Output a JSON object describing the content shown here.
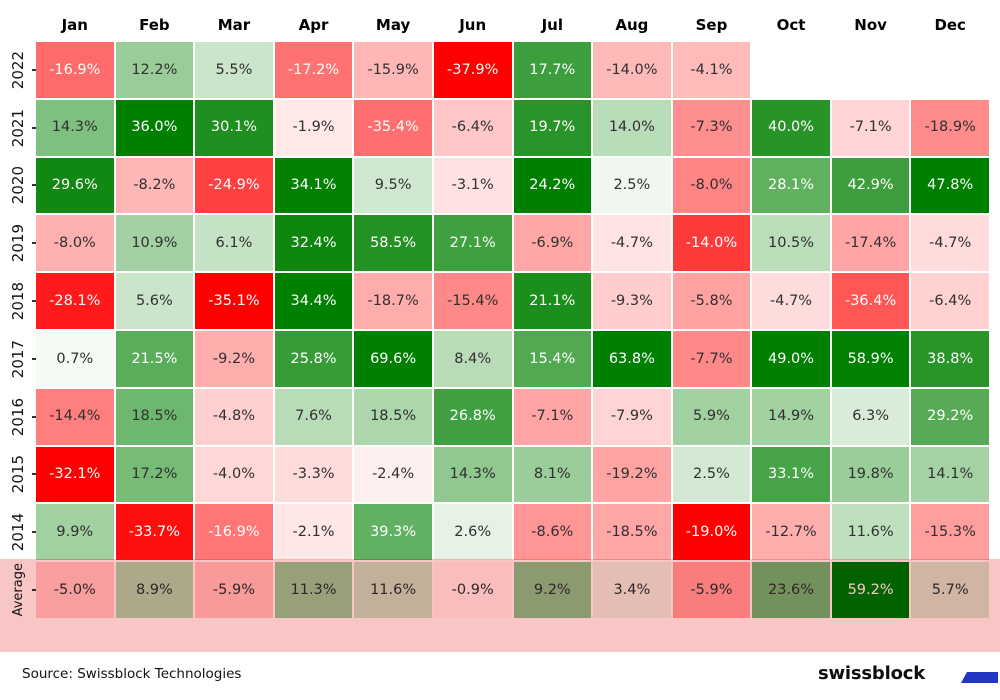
{
  "chart_data": {
    "type": "heatmap",
    "title": "",
    "xlabel": "",
    "ylabel": "",
    "columns": [
      "Jan",
      "Feb",
      "Mar",
      "Apr",
      "May",
      "Jun",
      "Jul",
      "Aug",
      "Sep",
      "Oct",
      "Nov",
      "Dec"
    ],
    "rows": [
      "2022",
      "2021",
      "2020",
      "2019",
      "2018",
      "2017",
      "2016",
      "2015",
      "2014",
      "Average"
    ],
    "values": [
      [
        -16.9,
        12.2,
        5.5,
        -17.2,
        -15.9,
        -37.9,
        17.7,
        -14.0,
        -4.1,
        null,
        null,
        null
      ],
      [
        14.3,
        36.0,
        30.1,
        -1.9,
        -35.4,
        -6.4,
        19.7,
        14.0,
        -7.3,
        40.0,
        -7.1,
        -18.9
      ],
      [
        29.6,
        -8.2,
        -24.9,
        34.1,
        9.5,
        -3.1,
        24.2,
        2.5,
        -8.0,
        28.1,
        42.9,
        47.8
      ],
      [
        -8.0,
        10.9,
        6.1,
        32.4,
        58.5,
        27.1,
        -6.9,
        -4.7,
        -14.0,
        10.5,
        -17.4,
        -4.7
      ],
      [
        -28.1,
        5.6,
        -35.1,
        34.4,
        -18.7,
        -15.4,
        21.1,
        -9.3,
        -5.8,
        -4.7,
        -36.4,
        -6.4
      ],
      [
        0.7,
        21.5,
        -9.2,
        25.8,
        69.6,
        8.4,
        15.4,
        63.8,
        -7.7,
        49.0,
        58.9,
        38.8
      ],
      [
        -14.4,
        18.5,
        -4.8,
        7.6,
        18.5,
        26.8,
        -7.1,
        -7.9,
        5.9,
        14.9,
        6.3,
        29.2
      ],
      [
        -32.1,
        17.2,
        -4.0,
        -3.3,
        -2.4,
        14.3,
        8.1,
        -19.2,
        2.5,
        33.1,
        19.8,
        14.1
      ],
      [
        9.9,
        -33.7,
        -16.9,
        -2.1,
        39.3,
        2.6,
        -8.6,
        -18.5,
        -19.0,
        -12.7,
        11.6,
        -15.3
      ],
      [
        -5.0,
        8.9,
        -5.9,
        11.3,
        11.6,
        -0.9,
        9.2,
        3.4,
        -5.9,
        23.6,
        59.2,
        5.7
      ]
    ],
    "value_format": "percent-1dp",
    "normalization": "column-symmetric",
    "legend": "none",
    "colors": {
      "positive_max": "#008000",
      "negative_max": "#ff0000",
      "midpoint": "#ffffff",
      "average_band": "#f9c6c6",
      "cell_text_dark": "#303030",
      "cell_text_light": "#ffffff"
    }
  },
  "footer": {
    "source": "Source: Swissblock Technologies",
    "brand": "swissblock",
    "brand_dash_color": "#2236c4"
  }
}
